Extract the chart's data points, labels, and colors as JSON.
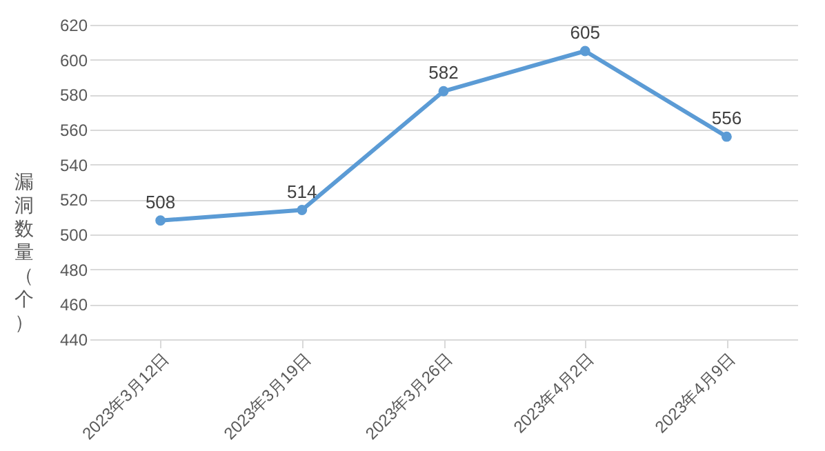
{
  "chart_data": {
    "type": "line",
    "ylabel": "漏洞数量（个）",
    "categories": [
      "2023年3月12日",
      "2023年3月19日",
      "2023年3月26日",
      "2023年4月2日",
      "2023年4月9日"
    ],
    "series": [
      {
        "color": "#5b9bd5",
        "values": [
          508,
          514,
          582,
          605,
          556
        ]
      }
    ],
    "ylim": [
      440,
      620
    ],
    "yticks": [
      440,
      460,
      480,
      500,
      520,
      540,
      560,
      580,
      600,
      620
    ],
    "grid": "y",
    "marker": "circle",
    "line_style": "solid",
    "data_labels": true
  }
}
